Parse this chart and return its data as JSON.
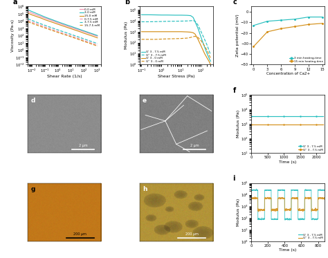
{
  "panel_a": {
    "label": "a",
    "xlabel": "Shear Rate (1/s)",
    "ylabel": "Viscosity (Pa·s)",
    "xlim": [
      0.005,
      2000
    ],
    "ylim": [
      0.01,
      1000000.0
    ],
    "series": [
      {
        "label": "0-0 mM",
        "color": "#f090b0",
        "linestyle": "-",
        "x": [
          0.005,
          0.01,
          0.05,
          0.1,
          0.5,
          1,
          5,
          10,
          50,
          100,
          500,
          1000
        ],
        "y": [
          200000.0,
          120000.0,
          40000.0,
          25000.0,
          9000,
          5500,
          2000,
          1300,
          500,
          330,
          120,
          80
        ]
      },
      {
        "label": "3-0 mM",
        "color": "#2abfbf",
        "linestyle": "-",
        "x": [
          0.005,
          0.01,
          0.05,
          0.1,
          0.5,
          1,
          5,
          10,
          50,
          100,
          500,
          1000
        ],
        "y": [
          350000.0,
          200000.0,
          60000.0,
          35000.0,
          12000.0,
          7500,
          2700,
          1800,
          650,
          420,
          155,
          100
        ]
      },
      {
        "label": "15-0 mM",
        "color": "#d4901a",
        "linestyle": "-",
        "x": [
          0.005,
          0.01,
          0.05,
          0.1,
          0.5,
          1,
          5,
          10,
          50,
          100,
          500,
          1000
        ],
        "y": [
          120000.0,
          70000.0,
          25000.0,
          15000.0,
          5500,
          3500,
          1300,
          850,
          320,
          200,
          75,
          48
        ]
      },
      {
        "label": "0-7.5 mM",
        "color": "#f090b0",
        "linestyle": "--",
        "x": [
          0.005,
          0.01,
          0.05,
          0.1,
          0.5,
          1,
          5,
          10,
          50,
          100,
          500,
          1000
        ],
        "y": [
          12000.0,
          7000,
          2500,
          1500,
          550,
          350,
          130,
          85,
          32,
          20,
          7.5,
          4.8
        ]
      },
      {
        "label": "3-7.5 mM",
        "color": "#2abfbf",
        "linestyle": "--",
        "x": [
          0.005,
          0.01,
          0.05,
          0.1,
          0.5,
          1,
          5,
          10,
          50,
          100,
          500,
          1000
        ],
        "y": [
          20000.0,
          12000.0,
          4000,
          2500,
          900,
          580,
          220,
          140,
          52,
          33,
          12,
          8
        ]
      },
      {
        "label": "15-7.5 mM",
        "color": "#d4901a",
        "linestyle": "--",
        "x": [
          0.005,
          0.01,
          0.05,
          0.1,
          0.5,
          1,
          5,
          10,
          50,
          100,
          500,
          1000
        ],
        "y": [
          8000,
          4800,
          1700,
          1100,
          400,
          260,
          100,
          65,
          24,
          15,
          5.5,
          3.5
        ]
      }
    ]
  },
  "panel_b": {
    "label": "b",
    "xlabel": "Shear Stress (Pa)",
    "ylabel": "Modulus (Pa)",
    "xlim": [
      0.08,
      400
    ],
    "ylim": [
      1,
      200000.0
    ],
    "series": [
      {
        "label": "G' 3 - 7.5 mM",
        "color": "#2abfbf",
        "linestyle": "-",
        "x": [
          0.1,
          0.2,
          0.5,
          1,
          2,
          5,
          10,
          20,
          30,
          40,
          50,
          70,
          100,
          150,
          200,
          250,
          300
        ],
        "y": [
          35000.0,
          35000.0,
          34000.0,
          33000.0,
          33000.0,
          32000.0,
          32000.0,
          31000.0,
          29000.0,
          20000.0,
          8000,
          2000,
          300,
          40,
          10,
          4,
          2
        ]
      },
      {
        "label": "G'' 3 - 7.5 mM",
        "color": "#2abfbf",
        "linestyle": "--",
        "x": [
          0.1,
          0.2,
          0.5,
          1,
          2,
          5,
          10,
          20,
          30,
          40,
          50,
          70,
          100,
          150,
          200,
          250,
          300
        ],
        "y": [
          8000,
          8000,
          8200,
          8500,
          8800,
          9000,
          9200,
          9500,
          10000.0,
          10500.0,
          9000,
          4000,
          1000,
          200,
          60,
          20,
          8
        ]
      },
      {
        "label": "G' 3 - 0 mM",
        "color": "#d4901a",
        "linestyle": "-",
        "x": [
          0.1,
          0.2,
          0.5,
          1,
          2,
          5,
          10,
          20,
          30,
          40,
          50,
          70,
          100,
          150,
          200,
          250,
          300
        ],
        "y": [
          1000,
          1000,
          1000,
          1000,
          1000,
          1000,
          1000,
          950,
          900,
          800,
          600,
          200,
          50,
          10,
          4,
          2,
          1
        ]
      },
      {
        "label": "G'' 3 - 0 mM",
        "color": "#d4901a",
        "linestyle": "--",
        "x": [
          0.1,
          0.2,
          0.5,
          1,
          2,
          5,
          10,
          20,
          30,
          40,
          50,
          70,
          100,
          150,
          200,
          250,
          300
        ],
        "y": [
          200,
          200,
          200,
          210,
          220,
          230,
          240,
          260,
          300,
          350,
          380,
          300,
          150,
          50,
          20,
          8,
          4
        ]
      }
    ]
  },
  "panel_c": {
    "label": "c",
    "xlabel": "Concentration of Ca2+",
    "ylabel": "Zeta potential (mV)",
    "xlim": [
      -0.5,
      15.5
    ],
    "ylim": [
      -50,
      5
    ],
    "xticks": [
      0,
      3,
      6,
      9,
      12,
      15
    ],
    "yticks": [
      0,
      -10,
      -20,
      -30,
      -40,
      -50
    ],
    "series": [
      {
        "label": "3 min heating-time",
        "color": "#2abfbf",
        "x": [
          0,
          3,
          6,
          9,
          12,
          15
        ],
        "y": [
          -13,
          -9,
          -8,
          -7,
          -5,
          -5
        ]
      },
      {
        "label": "15 min heating-time",
        "color": "#d4901a",
        "x": [
          0,
          3,
          6,
          9,
          12,
          15
        ],
        "y": [
          -33,
          -19,
          -16,
          -14,
          -12,
          -11
        ]
      }
    ]
  },
  "panel_d": {
    "label": "d",
    "scale_text": "2 μm",
    "gray_mean": 0.55,
    "gray_std": 0.018
  },
  "panel_e": {
    "label": "e",
    "scale_text": "2 μm",
    "gray_mean": 0.5,
    "gray_std": 0.022,
    "fibers": [
      [
        [
          0.35,
          0.65
        ],
        [
          0.55,
          0.98
        ]
      ],
      [
        [
          0.35,
          0.5
        ],
        [
          0.55,
          0.15
        ]
      ],
      [
        [
          0.35,
          0.02
        ],
        [
          0.55,
          0.4
        ]
      ],
      [
        [
          0.5,
          0.92
        ],
        [
          0.15,
          0.38
        ]
      ],
      [
        [
          0.5,
          0.68
        ],
        [
          0.15,
          0.02
        ]
      ],
      [
        [
          0.65,
          0.98
        ],
        [
          0.98,
          0.72
        ]
      ],
      [
        [
          0.35,
          0.08
        ],
        [
          0.55,
          0.65
        ]
      ],
      [
        [
          0.35,
          0.6
        ],
        [
          0.55,
          0.82
        ]
      ]
    ]
  },
  "panel_f": {
    "label": "f",
    "xlabel": "Time (s)",
    "ylabel": "Modulus (Pa)",
    "xlim": [
      0,
      2250
    ],
    "ylim": [
      10.0,
      100000.0
    ],
    "xticks": [
      0,
      500,
      1000,
      1500,
      2000
    ],
    "series": [
      {
        "label": "G' 3 - 7.5 mM",
        "color": "#2abfbf",
        "marker": "o",
        "x": [
          0,
          100,
          200,
          300,
          400,
          500,
          600,
          700,
          800,
          900,
          1000,
          1100,
          1200,
          1300,
          1400,
          1500,
          1600,
          1700,
          1800,
          1900,
          2000,
          2100,
          2200
        ],
        "y": [
          3200,
          3200,
          3200,
          3200,
          3200,
          3200,
          3200,
          3200,
          3200,
          3200,
          3200,
          3200,
          3200,
          3200,
          3200,
          3200,
          3200,
          3200,
          3200,
          3200,
          3200,
          3200,
          3200
        ]
      },
      {
        "label": "G'' 3 - 7.5 mM",
        "color": "#d4901a",
        "marker": "o",
        "x": [
          0,
          100,
          200,
          300,
          400,
          500,
          600,
          700,
          800,
          900,
          1000,
          1100,
          1200,
          1300,
          1400,
          1500,
          1600,
          1700,
          1800,
          1900,
          2000,
          2100,
          2200
        ],
        "y": [
          950,
          950,
          950,
          950,
          950,
          950,
          950,
          950,
          950,
          950,
          950,
          950,
          950,
          950,
          950,
          950,
          950,
          950,
          950,
          950,
          950,
          950,
          950
        ]
      }
    ]
  },
  "panel_g": {
    "label": "g",
    "scale_text": "200 μm",
    "r_mean": 0.76,
    "r_std": 0.018,
    "g_mean": 0.47,
    "g_std": 0.018,
    "b_mean": 0.1,
    "b_std": 0.012
  },
  "panel_h": {
    "label": "h",
    "scale_text": "200 μm",
    "base_r": 0.7,
    "base_g": 0.58,
    "base_b": 0.22,
    "blob_color_r": 0.45,
    "blob_color_g": 0.38,
    "blob_color_b": 0.15
  },
  "panel_i": {
    "label": "i",
    "xlabel": "Time (s)",
    "ylabel": "Modulus (Pa)",
    "xlim": [
      0,
      880
    ],
    "ylim": [
      1.0,
      100000.0
    ],
    "xticks": [
      0,
      200,
      400,
      600,
      800
    ],
    "period": 160,
    "on_duration": 80,
    "cyan_on": 25000.0,
    "cyan_off": 80,
    "gold_on": 5000,
    "gold_off": 500,
    "noise_seed": 55,
    "color_cyan": "#2abfbf",
    "color_gold": "#d4901a",
    "label_cyan": "G' 3 - 7.5 mM",
    "label_gold": "G'' 3 - 7.5 mM"
  }
}
